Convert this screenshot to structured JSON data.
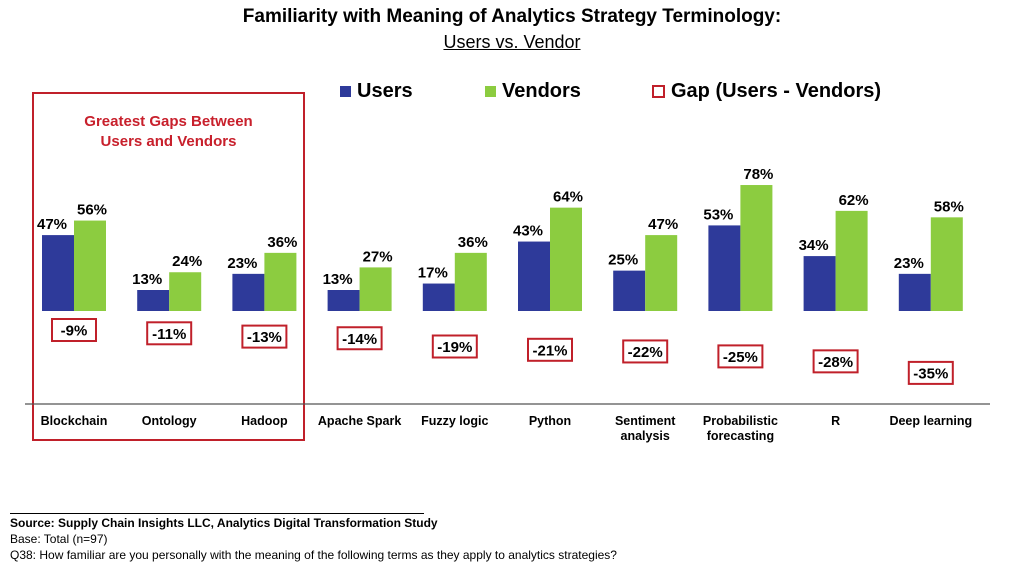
{
  "title": "Familiarity with Meaning of Analytics Strategy Terminology:",
  "subtitle": "Users vs. Vendor",
  "legend": {
    "users": "Users",
    "vendors": "Vendors",
    "gap": "Gap (Users - Vendors)"
  },
  "highlight_label": {
    "line1": "Greatest Gaps Between",
    "line2": "Users and Vendors"
  },
  "colors": {
    "users": "#2e3a9a",
    "vendors": "#8ccc40",
    "gap_border": "#c0202a",
    "highlight": "#c0202a"
  },
  "chart_data": {
    "type": "bar",
    "categories": [
      [
        "Blockchain"
      ],
      [
        "Ontology"
      ],
      [
        "Hadoop"
      ],
      [
        "Apache Spark"
      ],
      [
        "Fuzzy logic"
      ],
      [
        "Python"
      ],
      [
        "Sentiment",
        "analysis"
      ],
      [
        "Probabilistic",
        "forecasting"
      ],
      [
        "R"
      ],
      [
        "Deep learning"
      ]
    ],
    "series": [
      {
        "name": "Users",
        "values": [
          47,
          13,
          23,
          13,
          17,
          43,
          25,
          53,
          34,
          23
        ]
      },
      {
        "name": "Vendors",
        "values": [
          56,
          24,
          36,
          27,
          36,
          64,
          47,
          78,
          62,
          58
        ]
      },
      {
        "name": "Gap (Users - Vendors)",
        "values": [
          -9,
          -11,
          -13,
          -14,
          -19,
          -21,
          -22,
          -25,
          -28,
          -35
        ]
      }
    ],
    "value_format": "percent",
    "ylim": [
      0,
      100
    ],
    "grid": false,
    "legend_position": "top"
  },
  "footer": {
    "source": "Source:  Supply Chain Insights LLC, Analytics Digital Transformation Study",
    "base": "Base: Total (n=97)",
    "question": "Q38: How familiar are you personally with the meaning of the following terms as they apply to analytics strategies?"
  }
}
